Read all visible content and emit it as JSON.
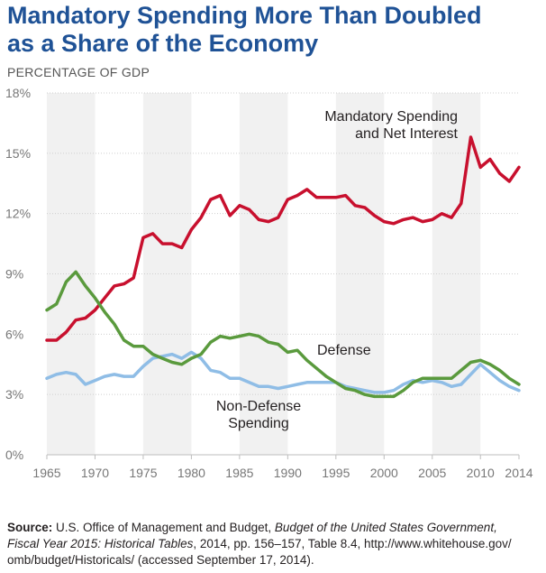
{
  "title_line1": "Mandatory Spending More Than Doubled",
  "title_line2": "as a Share of the Economy",
  "chart_data": {
    "type": "line",
    "ylabel": "PERCENTAGE OF GDP",
    "xlabel": "",
    "xlim": [
      1965,
      2014
    ],
    "ylim": [
      0,
      18
    ],
    "y_ticks": [
      "0%",
      "3%",
      "6%",
      "9%",
      "12%",
      "15%",
      "18%"
    ],
    "y_tick_values": [
      0,
      3,
      6,
      9,
      12,
      15,
      18
    ],
    "x_ticks": [
      1965,
      1970,
      1975,
      1980,
      1985,
      1990,
      1995,
      2000,
      2005,
      2010,
      2014
    ],
    "shaded_bands": [
      [
        1965,
        1970
      ],
      [
        1975,
        1980
      ],
      [
        1985,
        1990
      ],
      [
        1995,
        2000
      ],
      [
        2005,
        2010
      ]
    ],
    "x": [
      1965,
      1966,
      1967,
      1968,
      1969,
      1970,
      1971,
      1972,
      1973,
      1974,
      1975,
      1976,
      1977,
      1978,
      1979,
      1980,
      1981,
      1982,
      1983,
      1984,
      1985,
      1986,
      1987,
      1988,
      1989,
      1990,
      1991,
      1992,
      1993,
      1994,
      1995,
      1996,
      1997,
      1998,
      1999,
      2000,
      2001,
      2002,
      2003,
      2004,
      2005,
      2006,
      2007,
      2008,
      2009,
      2010,
      2011,
      2012,
      2013,
      2014
    ],
    "series": [
      {
        "name": "Mandatory Spending and Net Interest",
        "label_line1": "Mandatory Spending",
        "label_line2": "and Net Interest",
        "color": "#c8102e",
        "values": [
          5.7,
          5.7,
          6.1,
          6.7,
          6.8,
          7.2,
          7.8,
          8.4,
          8.5,
          8.8,
          10.8,
          11.0,
          10.5,
          10.5,
          10.3,
          11.2,
          11.8,
          12.7,
          12.9,
          11.9,
          12.4,
          12.2,
          11.7,
          11.6,
          11.8,
          12.7,
          12.9,
          13.2,
          12.8,
          12.8,
          12.8,
          12.9,
          12.4,
          12.3,
          11.9,
          11.6,
          11.5,
          11.7,
          11.8,
          11.6,
          11.7,
          12.0,
          11.8,
          12.5,
          15.8,
          14.3,
          14.7,
          14.0,
          13.6,
          14.3
        ]
      },
      {
        "name": "Defense",
        "label_line1": "Defense",
        "color": "#5a9a3d",
        "values": [
          7.2,
          7.5,
          8.6,
          9.1,
          8.4,
          7.8,
          7.1,
          6.5,
          5.7,
          5.4,
          5.4,
          5.0,
          4.8,
          4.6,
          4.5,
          4.8,
          5.0,
          5.6,
          5.9,
          5.8,
          5.9,
          6.0,
          5.9,
          5.6,
          5.5,
          5.1,
          5.2,
          4.7,
          4.3,
          3.9,
          3.6,
          3.3,
          3.2,
          3.0,
          2.9,
          2.9,
          2.9,
          3.2,
          3.6,
          3.8,
          3.8,
          3.8,
          3.8,
          4.2,
          4.6,
          4.7,
          4.5,
          4.2,
          3.8,
          3.5
        ]
      },
      {
        "name": "Non-Defense Spending",
        "label_line1": "Non-Defense",
        "label_line2": "Spending",
        "color": "#8fbde6",
        "values": [
          3.8,
          4.0,
          4.1,
          4.0,
          3.5,
          3.7,
          3.9,
          4.0,
          3.9,
          3.9,
          4.4,
          4.8,
          4.9,
          5.0,
          4.8,
          5.1,
          4.8,
          4.2,
          4.1,
          3.8,
          3.8,
          3.6,
          3.4,
          3.4,
          3.3,
          3.4,
          3.5,
          3.6,
          3.6,
          3.6,
          3.6,
          3.4,
          3.3,
          3.2,
          3.1,
          3.1,
          3.2,
          3.5,
          3.7,
          3.6,
          3.7,
          3.6,
          3.4,
          3.5,
          4.0,
          4.5,
          4.1,
          3.7,
          3.4,
          3.2
        ]
      }
    ]
  },
  "source": {
    "label": "Source:",
    "text1": " U.S. Office of Management and Budget, ",
    "italic1": "Budget of the United States Government,",
    "italic2": "Fiscal Year 2015: Historical Tables",
    "text2": ", 2014, pp. 156–157, Table 8.4, http://www.whitehouse.gov/",
    "text3": "omb/budget/Historicals/ (accessed September 17, 2014)."
  }
}
